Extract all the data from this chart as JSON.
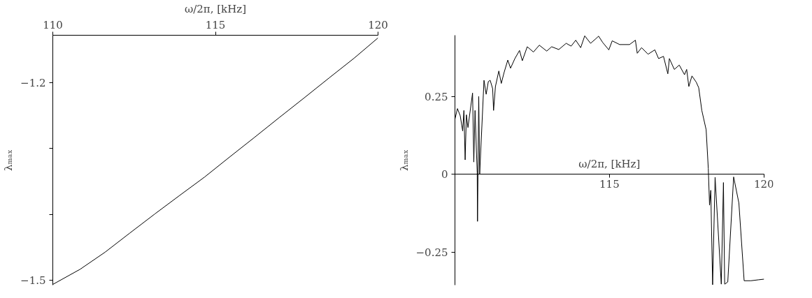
{
  "chart_data": [
    {
      "type": "line",
      "xlabel": "ω/2π, [kHz]",
      "ylabel": "λₘₐₓ",
      "xlim": [
        110,
        120
      ],
      "xticks": [
        110,
        115,
        120
      ],
      "ylim": [
        -1.507,
        -1.128
      ],
      "yticks": [
        {
          "value": -1.2,
          "label": "−1.2"
        },
        {
          "value": -1.3,
          "label": null
        },
        {
          "value": -1.4,
          "label": null
        },
        {
          "value": -1.5,
          "label": "−1.5"
        }
      ],
      "marker": "none",
      "line_style": "solid",
      "series": [
        {
          "color": "#000000",
          "x": [
            110.0,
            110.84,
            111.61,
            112.37,
            113.14,
            113.9,
            114.67,
            115.43,
            116.2,
            116.96,
            117.73,
            118.49,
            119.26,
            120.0
          ],
          "values": [
            -1.506,
            -1.483,
            -1.457,
            -1.428,
            -1.399,
            -1.371,
            -1.343,
            -1.313,
            -1.283,
            -1.253,
            -1.223,
            -1.193,
            -1.163,
            -1.132
          ]
        }
      ]
    },
    {
      "type": "line",
      "xlabel": "ω/2π, [kHz]",
      "ylabel": "λₘₐₓ",
      "xlim": [
        110,
        120
      ],
      "xticks": [
        115,
        120
      ],
      "ylim": [
        -0.356,
        0.448
      ],
      "yticks": [
        0.25,
        0,
        {
          "value": -0.25,
          "label": "−0.25"
        }
      ],
      "marker": "none",
      "line_style": "solid",
      "series": [
        {
          "color": "#000000",
          "x": [
            110.0,
            110.08,
            110.17,
            110.25,
            110.29,
            110.33,
            110.37,
            110.42,
            110.57,
            110.61,
            110.65,
            110.72,
            110.73,
            110.77,
            110.8,
            110.94,
            111.01,
            111.08,
            111.14,
            111.22,
            111.25,
            111.31,
            111.42,
            111.5,
            111.59,
            111.71,
            111.8,
            111.94,
            112.09,
            112.18,
            112.34,
            112.54,
            112.73,
            112.97,
            113.13,
            113.36,
            113.6,
            113.76,
            113.91,
            114.07,
            114.2,
            114.39,
            114.54,
            114.65,
            114.78,
            114.98,
            115.09,
            115.33,
            115.65,
            115.84,
            115.9,
            116.04,
            116.25,
            116.47,
            116.59,
            116.75,
            116.89,
            116.94,
            117.1,
            117.26,
            117.43,
            117.5,
            117.57,
            117.67,
            117.81,
            117.89,
            117.99,
            118.13,
            118.2,
            118.24,
            118.28,
            118.34,
            118.42,
            118.62,
            118.69,
            118.73,
            118.83,
            119.02,
            119.19,
            119.36,
            119.58,
            119.82,
            120.0
          ],
          "values": [
            0.178,
            0.212,
            0.189,
            0.14,
            0.206,
            0.047,
            0.192,
            0.151,
            0.262,
            0.04,
            0.206,
            0.005,
            -0.151,
            0.251,
            0.001,
            0.303,
            0.258,
            0.299,
            0.303,
            0.276,
            0.206,
            0.283,
            0.333,
            0.293,
            0.328,
            0.368,
            0.342,
            0.373,
            0.399,
            0.366,
            0.411,
            0.394,
            0.416,
            0.397,
            0.411,
            0.402,
            0.422,
            0.413,
            0.432,
            0.408,
            0.446,
            0.422,
            0.435,
            0.445,
            0.425,
            0.401,
            0.43,
            0.418,
            0.418,
            0.432,
            0.39,
            0.408,
            0.387,
            0.401,
            0.373,
            0.38,
            0.324,
            0.373,
            0.338,
            0.352,
            0.321,
            0.338,
            0.283,
            0.317,
            0.297,
            0.279,
            0.206,
            0.144,
            0.019,
            -0.099,
            -0.051,
            -0.355,
            -0.009,
            -0.353,
            -0.026,
            -0.353,
            -0.346,
            -0.008,
            -0.092,
            -0.342,
            -0.342,
            -0.339,
            -0.337
          ]
        }
      ]
    }
  ]
}
